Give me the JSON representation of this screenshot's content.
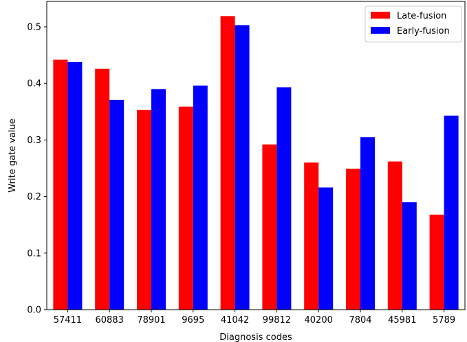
{
  "chart_data": {
    "type": "bar",
    "title": "",
    "xlabel": "Diagnosis codes",
    "ylabel": "Write gate value",
    "categories": [
      "57411",
      "60883",
      "78901",
      "9695",
      "41042",
      "99812",
      "40200",
      "7804",
      "45981",
      "5789"
    ],
    "series": [
      {
        "name": "Late-fusion",
        "color": "#ff0000",
        "values": [
          0.442,
          0.426,
          0.353,
          0.359,
          0.519,
          0.292,
          0.26,
          0.249,
          0.262,
          0.168
        ]
      },
      {
        "name": "Early-fusion",
        "color": "#0000ff",
        "values": [
          0.438,
          0.371,
          0.39,
          0.396,
          0.503,
          0.393,
          0.216,
          0.305,
          0.19,
          0.343
        ]
      }
    ],
    "ylim": [
      0,
      0.545
    ],
    "yticks": [
      "0.0",
      "0.1",
      "0.2",
      "0.3",
      "0.4",
      "0.5"
    ],
    "grid": false,
    "legend_position": "top-right"
  }
}
